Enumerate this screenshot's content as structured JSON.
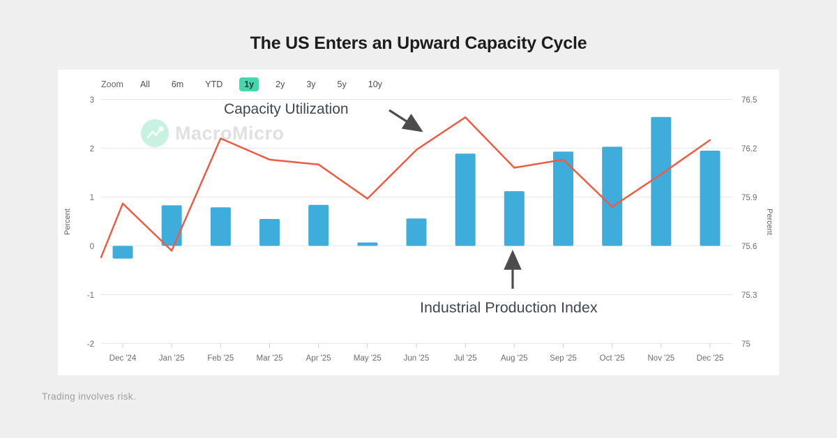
{
  "header": {
    "title": "The US Enters an Upward Capacity Cycle"
  },
  "toolbar": {
    "label": "Zoom",
    "buttons": [
      "All",
      "6m",
      "YTD",
      "1y",
      "2y",
      "3y",
      "5y",
      "10y"
    ],
    "active": "1y",
    "active_color": "#44d6ac"
  },
  "watermark": {
    "text": "MacroMicro",
    "logo_color": "#c7f2e1"
  },
  "annotations": {
    "line_label": "Capacity Utilization",
    "bar_label": "Industrial Production Index"
  },
  "footer": {
    "text": "Trading involves risk."
  },
  "chart_data": {
    "type": "bar+line combo",
    "grid": true,
    "categories": [
      "Dec '24",
      "Jan '25",
      "Feb '25",
      "Mar '25",
      "Apr '25",
      "May '25",
      "Jun '25",
      "Jul '25",
      "Aug '25",
      "Sep '25",
      "Oct '25",
      "Nov '25",
      "Dec '25"
    ],
    "left_axis": {
      "title": "Percent",
      "ticks": [
        3,
        2,
        1,
        0,
        -1,
        -2
      ],
      "range": [
        -2,
        3
      ]
    },
    "right_axis": {
      "title": "Percent",
      "ticks": [
        76.5,
        76.2,
        75.9,
        75.6,
        75.3,
        75
      ],
      "range": [
        75,
        76.5
      ]
    },
    "series": [
      {
        "name": "Industrial Production Index",
        "type": "bar",
        "axis": "left",
        "color": "#3FADDB",
        "values": [
          -0.26,
          0.83,
          0.79,
          0.55,
          0.84,
          0.07,
          0.56,
          1.89,
          1.12,
          1.93,
          2.03,
          2.64,
          1.95
        ]
      },
      {
        "name": "Capacity Utilization",
        "type": "line",
        "axis": "right",
        "color": "#EC5C44",
        "edge_start_value": 75.53,
        "values": [
          75.86,
          75.57,
          76.26,
          76.13,
          76.1,
          75.89,
          76.19,
          76.39,
          76.08,
          76.13,
          75.84,
          76.04,
          76.25
        ]
      }
    ],
    "style": {
      "grid_color": "#e7e7e7",
      "axis_label_color": "#6b6b6b",
      "annotation_arrow_color": "#4c4c4c"
    }
  }
}
